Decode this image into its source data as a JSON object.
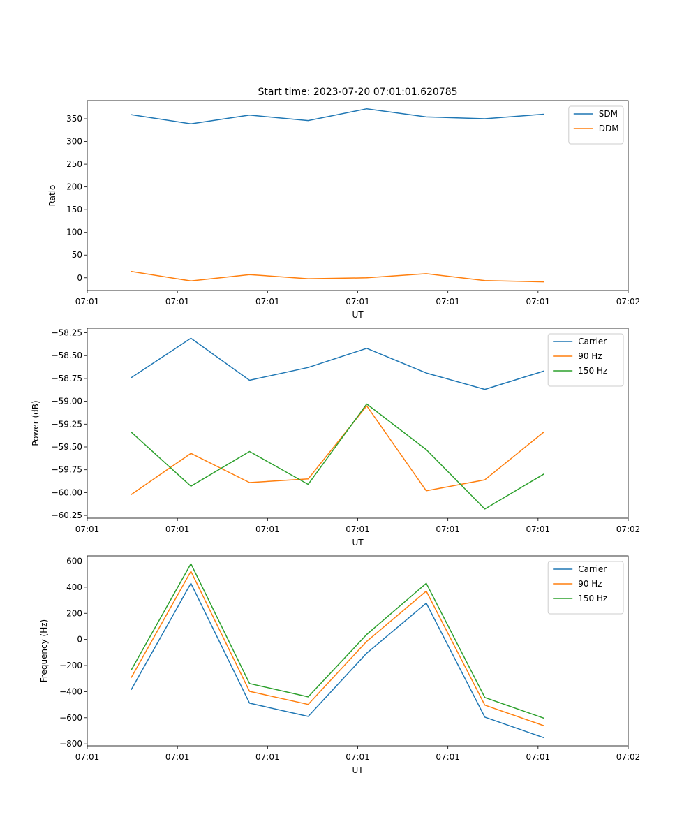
{
  "chart_data": [
    {
      "type": "line",
      "title": "Start time: 2023-07-20 07:01:01.620785",
      "xlabel": "UT",
      "ylabel": "Ratio",
      "xlim": [
        0,
        6
      ],
      "xticks": [
        0,
        1,
        2,
        3,
        4,
        5,
        6
      ],
      "xtick_labels": [
        "07:01",
        "07:01",
        "07:01",
        "07:01",
        "07:01",
        "07:01",
        "07:02"
      ],
      "ylim": [
        -28,
        390
      ],
      "yticks": [
        0,
        50,
        100,
        150,
        200,
        250,
        300,
        350
      ],
      "ytick_labels": [
        "0",
        "50",
        "100",
        "150",
        "200",
        "250",
        "300",
        "350"
      ],
      "legend_position": "top-right",
      "x": [
        0.49,
        1.15,
        1.8,
        2.45,
        3.1,
        3.76,
        4.41,
        5.06
      ],
      "series": [
        {
          "name": "SDM",
          "color": "#1f77b4",
          "values": [
            359,
            339,
            358,
            346,
            372,
            354,
            350,
            360
          ]
        },
        {
          "name": "DDM",
          "color": "#ff7f0e",
          "values": [
            14,
            -7,
            7,
            -2,
            0,
            9,
            -6,
            -9
          ]
        }
      ]
    },
    {
      "type": "line",
      "title": "",
      "xlabel": "UT",
      "ylabel": "Power (dB)",
      "xlim": [
        0,
        6
      ],
      "xticks": [
        0,
        1,
        2,
        3,
        4,
        5,
        6
      ],
      "xtick_labels": [
        "07:01",
        "07:01",
        "07:01",
        "07:01",
        "07:01",
        "07:01",
        "07:02"
      ],
      "ylim": [
        -60.28,
        -58.2
      ],
      "yticks": [
        -60.25,
        -60.0,
        -59.75,
        -59.5,
        -59.25,
        -59.0,
        -58.75,
        -58.5,
        -58.25
      ],
      "ytick_labels": [
        "−60.25",
        "−60.00",
        "−59.75",
        "−59.50",
        "−59.25",
        "−59.00",
        "−58.75",
        "−58.50",
        "−58.25"
      ],
      "legend_position": "top-right",
      "x": [
        0.49,
        1.15,
        1.8,
        2.45,
        3.1,
        3.76,
        4.41,
        5.06
      ],
      "series": [
        {
          "name": "Carrier",
          "color": "#1f77b4",
          "values": [
            -58.74,
            -58.31,
            -58.77,
            -58.63,
            -58.42,
            -58.69,
            -58.87,
            -58.67
          ]
        },
        {
          "name": "90 Hz",
          "color": "#ff7f0e",
          "values": [
            -60.02,
            -59.57,
            -59.89,
            -59.85,
            -59.05,
            -59.98,
            -59.86,
            -59.34
          ]
        },
        {
          "name": "150 Hz",
          "color": "#2ca02c",
          "values": [
            -59.34,
            -59.93,
            -59.55,
            -59.91,
            -59.03,
            -59.53,
            -60.18,
            -59.8
          ]
        }
      ]
    },
    {
      "type": "line",
      "title": "",
      "xlabel": "UT",
      "ylabel": "Frequency (Hz)",
      "xlim": [
        0,
        6
      ],
      "xticks": [
        0,
        1,
        2,
        3,
        4,
        5,
        6
      ],
      "xtick_labels": [
        "07:01",
        "07:01",
        "07:01",
        "07:01",
        "07:01",
        "07:01",
        "07:02"
      ],
      "ylim": [
        -815,
        640
      ],
      "yticks": [
        -800,
        -600,
        -400,
        -200,
        0,
        200,
        400,
        600
      ],
      "ytick_labels": [
        "−800",
        "−600",
        "−400",
        "−200",
        "0",
        "200",
        "400",
        "600"
      ],
      "legend_position": "top-right",
      "x": [
        0.49,
        1.15,
        1.8,
        2.45,
        3.1,
        3.76,
        4.41,
        5.06
      ],
      "series": [
        {
          "name": "Carrier",
          "color": "#1f77b4",
          "values": [
            -382,
            430,
            -488,
            -590,
            -105,
            278,
            -595,
            -752
          ]
        },
        {
          "name": "90 Hz",
          "color": "#ff7f0e",
          "values": [
            -290,
            522,
            -398,
            -498,
            -15,
            370,
            -503,
            -660
          ]
        },
        {
          "name": "150 Hz",
          "color": "#2ca02c",
          "values": [
            -232,
            580,
            -338,
            -440,
            38,
            430,
            -445,
            -602
          ]
        }
      ]
    }
  ]
}
